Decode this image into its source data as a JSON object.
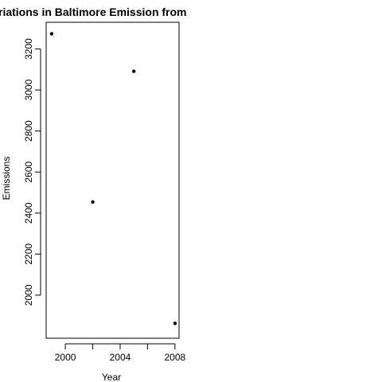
{
  "chart_data": {
    "type": "scatter",
    "title": "riations in Baltimore Emission from",
    "xlabel": "Year",
    "ylabel": "Emissions",
    "x": [
      1999,
      2002,
      2005,
      2008
    ],
    "y": [
      3274.18,
      2453.92,
      3091.35,
      1862.28
    ],
    "xlim": [
      1998.6,
      2008.3
    ],
    "ylim": [
      1790,
      3330
    ],
    "xticks": [
      "2000",
      "2004",
      "2008"
    ],
    "yticks": [
      "2000",
      "2200",
      "2400",
      "2600",
      "2800",
      "3000",
      "3200"
    ],
    "grid": false,
    "legend": "none",
    "marker_color": "#000000"
  }
}
